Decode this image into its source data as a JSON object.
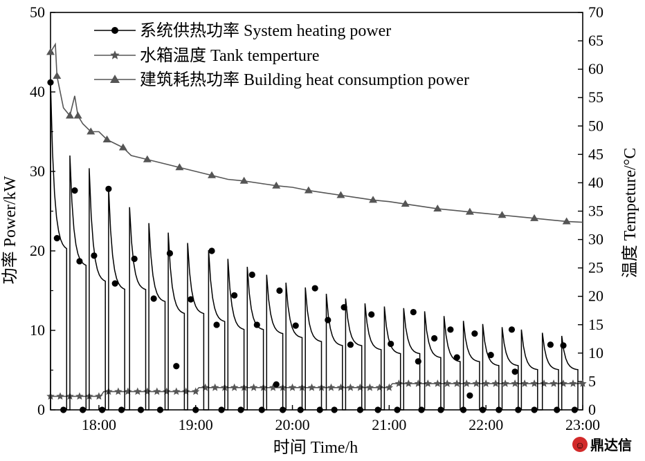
{
  "chart_data": {
    "type": "line",
    "xlabel": "时间 Time/h",
    "ylabel_left": "功率 Power/kW",
    "ylabel_right": "温度 Tempeture/°C",
    "x_range": [
      "17:30",
      "23:00"
    ],
    "x_ticks": [
      "18:00",
      "19:00",
      "20:00",
      "21:00",
      "22:00",
      "23:00"
    ],
    "ylim_left": [
      0,
      50
    ],
    "yticks_left": [
      0,
      10,
      20,
      30,
      40,
      50
    ],
    "ylim_right": [
      0,
      70
    ],
    "yticks_right": [
      0,
      5,
      10,
      15,
      20,
      25,
      30,
      35,
      40,
      45,
      50,
      55,
      60,
      65,
      70
    ],
    "legend": {
      "position": "top-left",
      "entries": [
        {
          "label": "系统供热功率 System heating power",
          "marker": "circle"
        },
        {
          "label": "水箱温度 Tank temperture",
          "marker": "star"
        },
        {
          "label": "建筑耗热功率 Building heat consumption power",
          "marker": "triangle"
        }
      ]
    },
    "series": [
      {
        "name": "系统供热功率 System heating power",
        "axis": "left",
        "color": "#000000",
        "marker": "circle",
        "cycles": [
          {
            "start": "17:30",
            "end": "17:40",
            "peak": 41.2,
            "last": 20.0
          },
          {
            "start": "17:42",
            "end": "17:52",
            "peak": 32.0,
            "last": 18.0
          },
          {
            "start": "17:54",
            "end": "18:04",
            "peak": 30.4,
            "last": 16.0
          },
          {
            "start": "18:06",
            "end": "18:16",
            "peak": 28.0,
            "last": 15.0
          },
          {
            "start": "18:19",
            "end": "18:29",
            "peak": 25.5,
            "last": 15.0
          },
          {
            "start": "18:31",
            "end": "18:41",
            "peak": 23.5,
            "last": 13.5
          },
          {
            "start": "18:43",
            "end": "18:53",
            "peak": 22.3,
            "last": 12.0
          },
          {
            "start": "18:55",
            "end": "19:05",
            "peak": 21.0,
            "last": 12.0
          },
          {
            "start": "19:08",
            "end": "19:18",
            "peak": 20.1,
            "last": 11.0
          },
          {
            "start": "19:20",
            "end": "19:30",
            "peak": 19.0,
            "last": 10.0
          },
          {
            "start": "19:32",
            "end": "19:42",
            "peak": 18.0,
            "last": 10.0
          },
          {
            "start": "19:44",
            "end": "19:54",
            "peak": 17.0,
            "last": 9.5
          },
          {
            "start": "19:56",
            "end": "20:06",
            "peak": 16.0,
            "last": 9.0
          },
          {
            "start": "20:08",
            "end": "20:18",
            "peak": 15.4,
            "last": 8.5
          },
          {
            "start": "20:21",
            "end": "20:31",
            "peak": 14.6,
            "last": 8.0
          },
          {
            "start": "20:33",
            "end": "20:43",
            "peak": 14.0,
            "last": 8.0
          },
          {
            "start": "20:45",
            "end": "20:55",
            "peak": 13.4,
            "last": 7.5
          },
          {
            "start": "20:57",
            "end": "21:07",
            "peak": 13.0,
            "last": 7.0
          },
          {
            "start": "21:09",
            "end": "21:19",
            "peak": 12.8,
            "last": 7.0
          },
          {
            "start": "21:22",
            "end": "21:32",
            "peak": 12.4,
            "last": 6.5
          },
          {
            "start": "21:34",
            "end": "21:44",
            "peak": 11.8,
            "last": 6.0
          },
          {
            "start": "21:46",
            "end": "21:56",
            "peak": 11.2,
            "last": 6.0
          },
          {
            "start": "21:58",
            "end": "22:08",
            "peak": 10.8,
            "last": 5.5
          },
          {
            "start": "22:10",
            "end": "22:20",
            "peak": 10.4,
            "last": 5.5
          },
          {
            "start": "22:22",
            "end": "22:32",
            "peak": 10.1,
            "last": 5.0
          },
          {
            "start": "22:35",
            "end": "22:45",
            "peak": 9.7,
            "last": 5.0
          },
          {
            "start": "22:47",
            "end": "22:57",
            "peak": 9.3,
            "last": 5.0
          }
        ],
        "markers": [
          [
            "17:30",
            41.2
          ],
          [
            "17:34",
            21.6
          ],
          [
            "17:38",
            0
          ],
          [
            "17:45",
            27.6
          ],
          [
            "17:48",
            18.7
          ],
          [
            "17:50",
            0
          ],
          [
            "17:57",
            19.4
          ],
          [
            "18:02",
            0
          ],
          [
            "18:06",
            27.8
          ],
          [
            "18:10",
            15.9
          ],
          [
            "18:14",
            0
          ],
          [
            "18:22",
            19.0
          ],
          [
            "18:26",
            0
          ],
          [
            "18:34",
            14.0
          ],
          [
            "18:38",
            0
          ],
          [
            "18:44",
            19.7
          ],
          [
            "18:48",
            5.5
          ],
          [
            "18:57",
            13.9
          ],
          [
            "19:00",
            0
          ],
          [
            "19:10",
            20.0
          ],
          [
            "19:13",
            10.7
          ],
          [
            "19:16",
            0
          ],
          [
            "19:24",
            14.4
          ],
          [
            "19:28",
            0
          ],
          [
            "19:35",
            17.0
          ],
          [
            "19:38",
            10.7
          ],
          [
            "19:41",
            0
          ],
          [
            "19:50",
            3.2
          ],
          [
            "19:52",
            15.0
          ],
          [
            "19:54",
            0
          ],
          [
            "20:02",
            10.6
          ],
          [
            "20:05",
            0
          ],
          [
            "20:14",
            15.3
          ],
          [
            "20:17",
            0
          ],
          [
            "20:22",
            11.3
          ],
          [
            "20:26",
            0
          ],
          [
            "20:32",
            12.9
          ],
          [
            "20:36",
            8.2
          ],
          [
            "20:42",
            0
          ],
          [
            "20:49",
            12.0
          ],
          [
            "20:53",
            0
          ],
          [
            "21:01",
            8.3
          ],
          [
            "21:05",
            0
          ],
          [
            "21:15",
            12.3
          ],
          [
            "21:18",
            6.1
          ],
          [
            "21:20",
            0
          ],
          [
            "21:28",
            9.0
          ],
          [
            "21:32",
            0
          ],
          [
            "21:38",
            10.1
          ],
          [
            "21:42",
            6.6
          ],
          [
            "21:46",
            0
          ],
          [
            "21:50",
            1.8
          ],
          [
            "21:53",
            9.6
          ],
          [
            "21:58",
            0
          ],
          [
            "22:03",
            6.9
          ],
          [
            "22:08",
            0
          ],
          [
            "22:16",
            10.1
          ],
          [
            "22:18",
            4.8
          ],
          [
            "22:20",
            0
          ],
          [
            "22:30",
            0
          ],
          [
            "22:40",
            8.2
          ],
          [
            "22:44",
            0
          ],
          [
            "22:48",
            8.1
          ],
          [
            "22:55",
            0
          ]
        ]
      },
      {
        "name": "水箱温度 Tank temperture",
        "axis": "left",
        "color": "#555555",
        "marker": "star",
        "points": [
          [
            "17:30",
            1.7
          ],
          [
            "18:01",
            1.7
          ],
          [
            "18:03",
            2.3
          ],
          [
            "19:00",
            2.3
          ],
          [
            "19:02",
            2.8
          ],
          [
            "21:00",
            2.8
          ],
          [
            "21:02",
            3.3
          ],
          [
            "23:00",
            3.3
          ]
        ]
      },
      {
        "name": "建筑耗热功率 Building heat consumption power",
        "axis": "left",
        "color": "#555555",
        "marker": "triangle",
        "points": [
          [
            "17:30",
            45
          ],
          [
            "17:33",
            46
          ],
          [
            "17:34",
            42
          ],
          [
            "17:38",
            38
          ],
          [
            "17:42",
            37
          ],
          [
            "17:45",
            39.5
          ],
          [
            "17:47",
            37
          ],
          [
            "17:50",
            36
          ],
          [
            "17:55",
            35
          ],
          [
            "18:00",
            35
          ],
          [
            "18:05",
            34
          ],
          [
            "18:10",
            33.5
          ],
          [
            "18:15",
            33
          ],
          [
            "18:20",
            32
          ],
          [
            "18:30",
            31.5
          ],
          [
            "18:40",
            31
          ],
          [
            "18:50",
            30.5
          ],
          [
            "19:00",
            30
          ],
          [
            "19:10",
            29.5
          ],
          [
            "19:20",
            29
          ],
          [
            "19:30",
            28.8
          ],
          [
            "19:40",
            28.5
          ],
          [
            "19:50",
            28.2
          ],
          [
            "20:00",
            28
          ],
          [
            "20:10",
            27.6
          ],
          [
            "20:20",
            27.3
          ],
          [
            "20:30",
            27
          ],
          [
            "20:40",
            26.7
          ],
          [
            "20:50",
            26.4
          ],
          [
            "21:00",
            26.2
          ],
          [
            "21:10",
            25.9
          ],
          [
            "21:20",
            25.6
          ],
          [
            "21:30",
            25.3
          ],
          [
            "21:40",
            25.1
          ],
          [
            "21:50",
            24.9
          ],
          [
            "22:00",
            24.7
          ],
          [
            "22:10",
            24.5
          ],
          [
            "22:20",
            24.3
          ],
          [
            "22:30",
            24.1
          ],
          [
            "22:40",
            23.9
          ],
          [
            "22:50",
            23.7
          ],
          [
            "23:00",
            23.6
          ]
        ]
      }
    ]
  },
  "watermark": {
    "text": "鼎达信",
    "icon": "logo-circle-icon",
    "color": "#d22a2a"
  }
}
